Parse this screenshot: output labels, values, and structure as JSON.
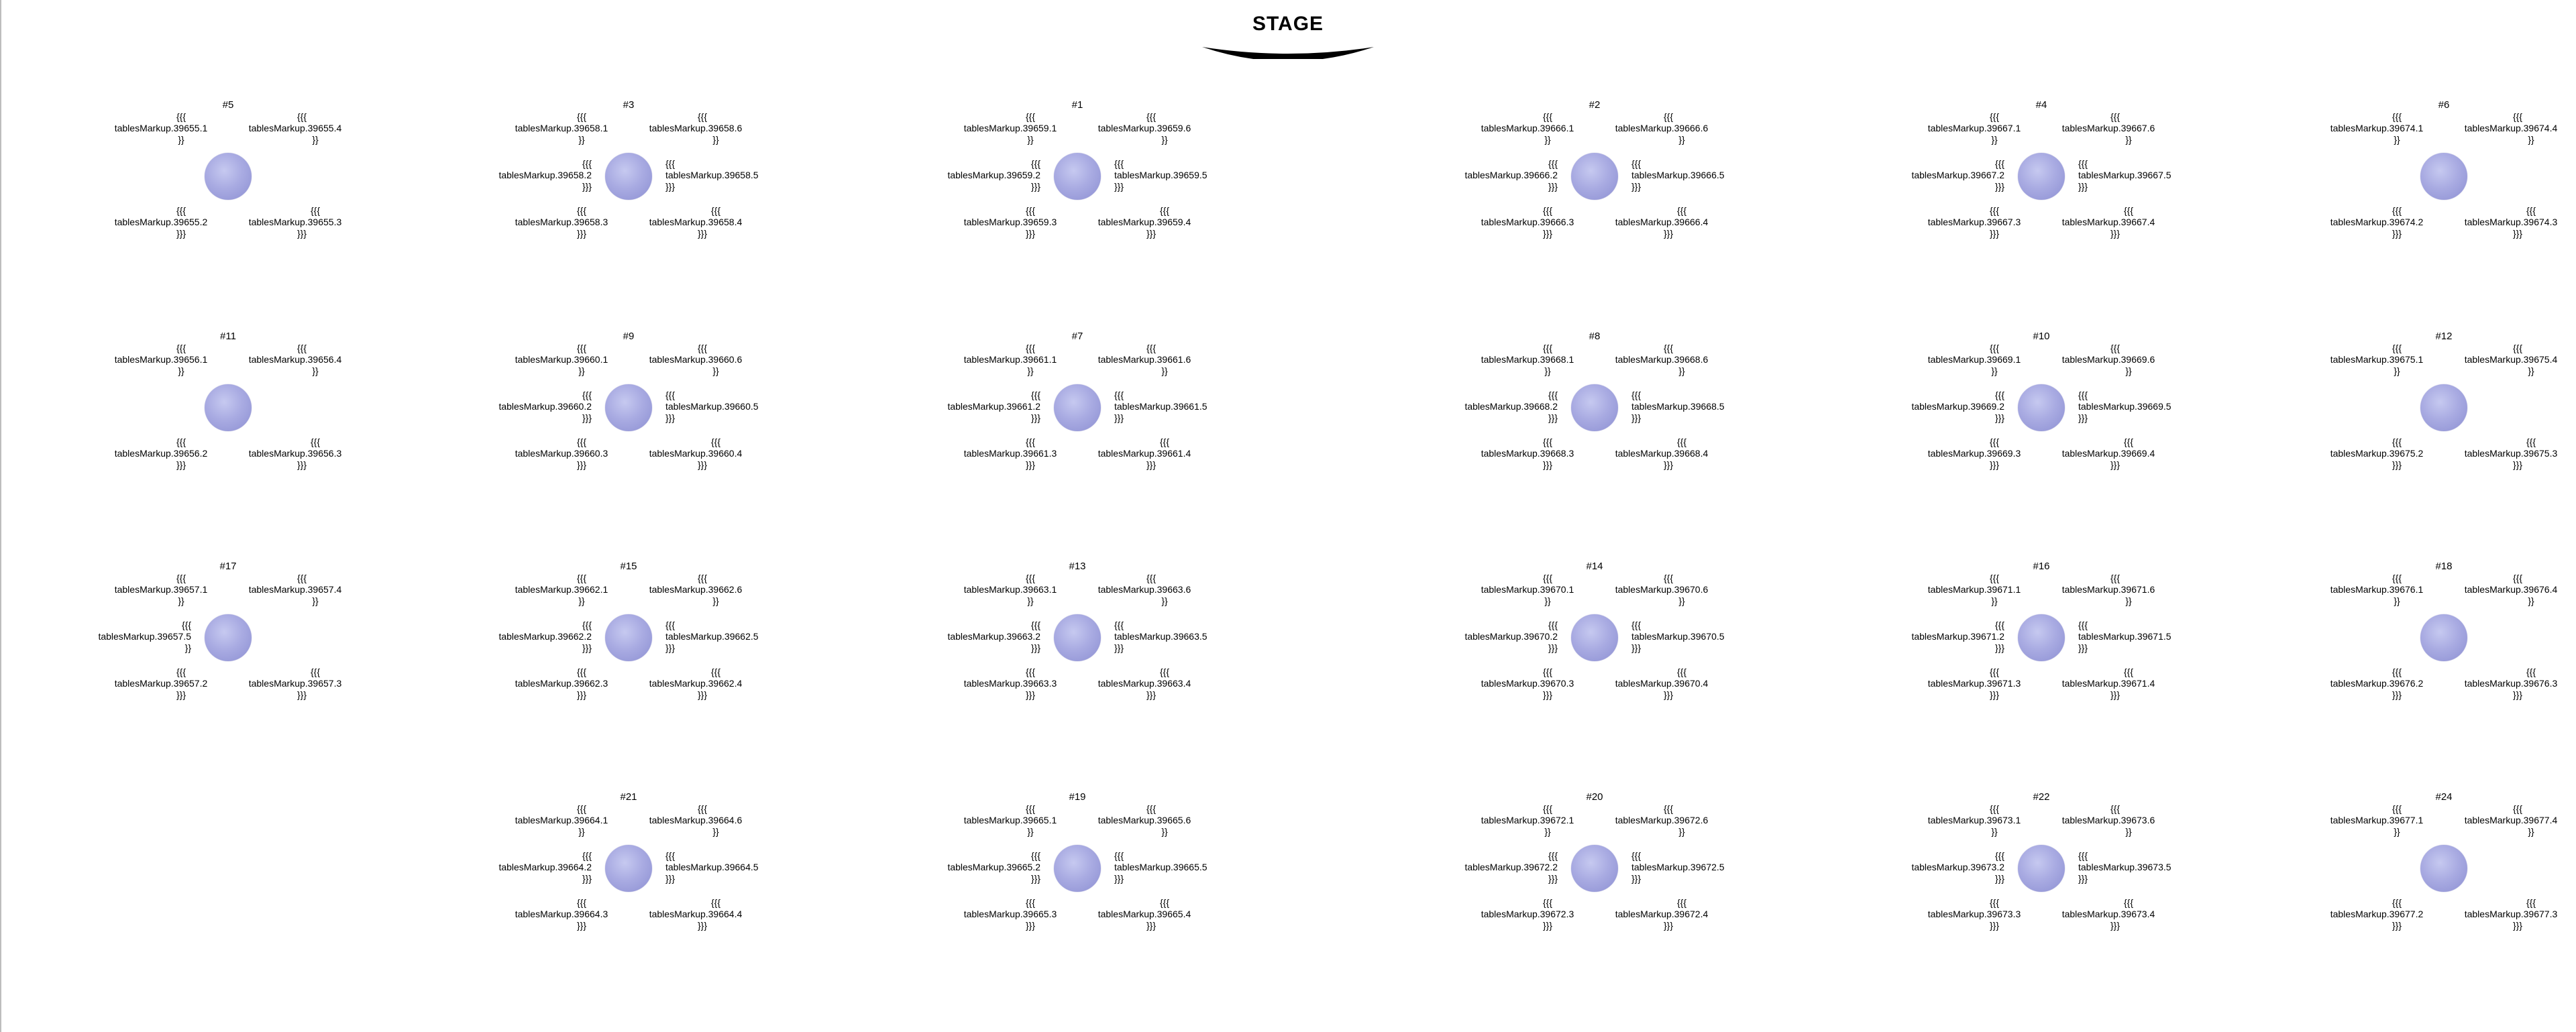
{
  "stage": {
    "label": "STAGE"
  },
  "brackets": {
    "open": "{{{",
    "close2": "}}",
    "close3": "}}}"
  },
  "tables": [
    {
      "number": "#5",
      "seats": {
        "1": "tablesMarkup.39655.1",
        "3": "tablesMarkup.39655.2",
        "4": "tablesMarkup.39655.3",
        "6": "tablesMarkup.39655.4"
      }
    },
    {
      "number": "#3",
      "seats": {
        "1": "tablesMarkup.39658.1",
        "2": "tablesMarkup.39658.2",
        "3": "tablesMarkup.39658.3",
        "4": "tablesMarkup.39658.4",
        "5": "tablesMarkup.39658.5",
        "6": "tablesMarkup.39658.6"
      }
    },
    {
      "number": "#1",
      "seats": {
        "1": "tablesMarkup.39659.1",
        "2": "tablesMarkup.39659.2",
        "3": "tablesMarkup.39659.3",
        "4": "tablesMarkup.39659.4",
        "5": "tablesMarkup.39659.5",
        "6": "tablesMarkup.39659.6"
      }
    },
    {
      "number": "#2",
      "seats": {
        "1": "tablesMarkup.39666.1",
        "2": "tablesMarkup.39666.2",
        "3": "tablesMarkup.39666.3",
        "4": "tablesMarkup.39666.4",
        "5": "tablesMarkup.39666.5",
        "6": "tablesMarkup.39666.6"
      }
    },
    {
      "number": "#4",
      "seats": {
        "1": "tablesMarkup.39667.1",
        "2": "tablesMarkup.39667.2",
        "3": "tablesMarkup.39667.3",
        "4": "tablesMarkup.39667.4",
        "5": "tablesMarkup.39667.5",
        "6": "tablesMarkup.39667.6"
      }
    },
    {
      "number": "#6",
      "seats": {
        "1": "tablesMarkup.39674.1",
        "3": "tablesMarkup.39674.2",
        "4": "tablesMarkup.39674.3",
        "6": "tablesMarkup.39674.4"
      }
    },
    {
      "number": "#11",
      "seats": {
        "1": "tablesMarkup.39656.1",
        "3": "tablesMarkup.39656.2",
        "4": "tablesMarkup.39656.3",
        "6": "tablesMarkup.39656.4"
      }
    },
    {
      "number": "#9",
      "seats": {
        "1": "tablesMarkup.39660.1",
        "2": "tablesMarkup.39660.2",
        "3": "tablesMarkup.39660.3",
        "4": "tablesMarkup.39660.4",
        "5": "tablesMarkup.39660.5",
        "6": "tablesMarkup.39660.6"
      }
    },
    {
      "number": "#7",
      "seats": {
        "1": "tablesMarkup.39661.1",
        "2": "tablesMarkup.39661.2",
        "3": "tablesMarkup.39661.3",
        "4": "tablesMarkup.39661.4",
        "5": "tablesMarkup.39661.5",
        "6": "tablesMarkup.39661.6"
      }
    },
    {
      "number": "#8",
      "seats": {
        "1": "tablesMarkup.39668.1",
        "2": "tablesMarkup.39668.2",
        "3": "tablesMarkup.39668.3",
        "4": "tablesMarkup.39668.4",
        "5": "tablesMarkup.39668.5",
        "6": "tablesMarkup.39668.6"
      }
    },
    {
      "number": "#10",
      "seats": {
        "1": "tablesMarkup.39669.1",
        "2": "tablesMarkup.39669.2",
        "3": "tablesMarkup.39669.3",
        "4": "tablesMarkup.39669.4",
        "5": "tablesMarkup.39669.5",
        "6": "tablesMarkup.39669.6"
      }
    },
    {
      "number": "#12",
      "seats": {
        "1": "tablesMarkup.39675.1",
        "3": "tablesMarkup.39675.2",
        "4": "tablesMarkup.39675.3",
        "6": "tablesMarkup.39675.4"
      }
    },
    {
      "number": "#17",
      "seats": {
        "1": "tablesMarkup.39657.1",
        "2": "tablesMarkup.39657.5",
        "3": "tablesMarkup.39657.2",
        "4": "tablesMarkup.39657.3",
        "6": "tablesMarkup.39657.4"
      }
    },
    {
      "number": "#15",
      "seats": {
        "1": "tablesMarkup.39662.1",
        "2": "tablesMarkup.39662.2",
        "3": "tablesMarkup.39662.3",
        "4": "tablesMarkup.39662.4",
        "5": "tablesMarkup.39662.5",
        "6": "tablesMarkup.39662.6"
      }
    },
    {
      "number": "#13",
      "seats": {
        "1": "tablesMarkup.39663.1",
        "2": "tablesMarkup.39663.2",
        "3": "tablesMarkup.39663.3",
        "4": "tablesMarkup.39663.4",
        "5": "tablesMarkup.39663.5",
        "6": "tablesMarkup.39663.6"
      }
    },
    {
      "number": "#14",
      "seats": {
        "1": "tablesMarkup.39670.1",
        "2": "tablesMarkup.39670.2",
        "3": "tablesMarkup.39670.3",
        "4": "tablesMarkup.39670.4",
        "5": "tablesMarkup.39670.5",
        "6": "tablesMarkup.39670.6"
      }
    },
    {
      "number": "#16",
      "seats": {
        "1": "tablesMarkup.39671.1",
        "2": "tablesMarkup.39671.2",
        "3": "tablesMarkup.39671.3",
        "4": "tablesMarkup.39671.4",
        "5": "tablesMarkup.39671.5",
        "6": "tablesMarkup.39671.6"
      }
    },
    {
      "number": "#18",
      "seats": {
        "1": "tablesMarkup.39676.1",
        "3": "tablesMarkup.39676.2",
        "4": "tablesMarkup.39676.3",
        "6": "tablesMarkup.39676.4"
      }
    },
    {
      "number": "#21",
      "seats": {
        "1": "tablesMarkup.39664.1",
        "2": "tablesMarkup.39664.2",
        "3": "tablesMarkup.39664.3",
        "4": "tablesMarkup.39664.4",
        "5": "tablesMarkup.39664.5",
        "6": "tablesMarkup.39664.6"
      }
    },
    {
      "number": "#19",
      "seats": {
        "1": "tablesMarkup.39665.1",
        "2": "tablesMarkup.39665.2",
        "3": "tablesMarkup.39665.3",
        "4": "tablesMarkup.39665.4",
        "5": "tablesMarkup.39665.5",
        "6": "tablesMarkup.39665.6"
      }
    },
    {
      "number": "#20",
      "seats": {
        "1": "tablesMarkup.39672.1",
        "2": "tablesMarkup.39672.2",
        "3": "tablesMarkup.39672.3",
        "4": "tablesMarkup.39672.4",
        "5": "tablesMarkup.39672.5",
        "6": "tablesMarkup.39672.6"
      }
    },
    {
      "number": "#22",
      "seats": {
        "1": "tablesMarkup.39673.1",
        "2": "tablesMarkup.39673.2",
        "3": "tablesMarkup.39673.3",
        "4": "tablesMarkup.39673.4",
        "5": "tablesMarkup.39673.5",
        "6": "tablesMarkup.39673.6"
      }
    },
    {
      "number": "#24",
      "seats": {
        "1": "tablesMarkup.39677.1",
        "3": "tablesMarkup.39677.2",
        "4": "tablesMarkup.39677.3",
        "6": "tablesMarkup.39677.4"
      }
    }
  ]
}
